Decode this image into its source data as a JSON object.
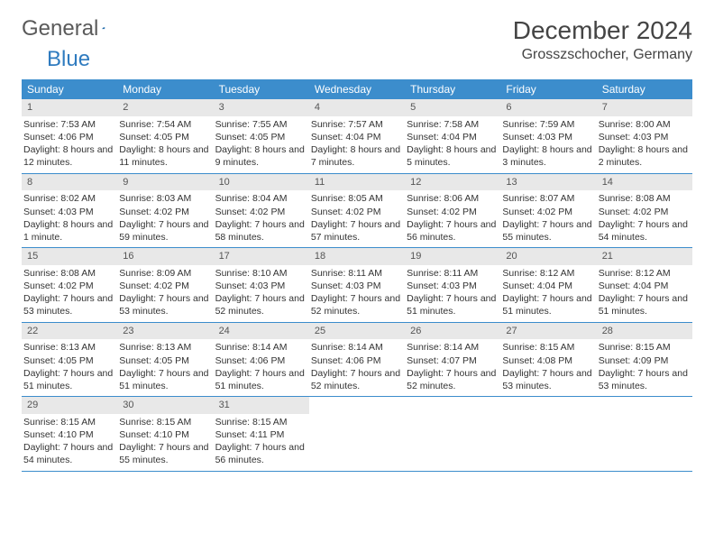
{
  "logo": {
    "text1": "General",
    "text2": "Blue"
  },
  "title": "December 2024",
  "location": "Grosszschocher, Germany",
  "colors": {
    "header_bg": "#3c8dcc",
    "header_text": "#ffffff",
    "daynum_bg": "#e8e8e8",
    "border": "#3c8dcc",
    "logo_gray": "#5a5a5a",
    "logo_blue": "#2f7bbf"
  },
  "weekdays": [
    "Sunday",
    "Monday",
    "Tuesday",
    "Wednesday",
    "Thursday",
    "Friday",
    "Saturday"
  ],
  "weeks": [
    [
      {
        "n": "1",
        "sunrise": "Sunrise: 7:53 AM",
        "sunset": "Sunset: 4:06 PM",
        "daylight": "Daylight: 8 hours and 12 minutes."
      },
      {
        "n": "2",
        "sunrise": "Sunrise: 7:54 AM",
        "sunset": "Sunset: 4:05 PM",
        "daylight": "Daylight: 8 hours and 11 minutes."
      },
      {
        "n": "3",
        "sunrise": "Sunrise: 7:55 AM",
        "sunset": "Sunset: 4:05 PM",
        "daylight": "Daylight: 8 hours and 9 minutes."
      },
      {
        "n": "4",
        "sunrise": "Sunrise: 7:57 AM",
        "sunset": "Sunset: 4:04 PM",
        "daylight": "Daylight: 8 hours and 7 minutes."
      },
      {
        "n": "5",
        "sunrise": "Sunrise: 7:58 AM",
        "sunset": "Sunset: 4:04 PM",
        "daylight": "Daylight: 8 hours and 5 minutes."
      },
      {
        "n": "6",
        "sunrise": "Sunrise: 7:59 AM",
        "sunset": "Sunset: 4:03 PM",
        "daylight": "Daylight: 8 hours and 3 minutes."
      },
      {
        "n": "7",
        "sunrise": "Sunrise: 8:00 AM",
        "sunset": "Sunset: 4:03 PM",
        "daylight": "Daylight: 8 hours and 2 minutes."
      }
    ],
    [
      {
        "n": "8",
        "sunrise": "Sunrise: 8:02 AM",
        "sunset": "Sunset: 4:03 PM",
        "daylight": "Daylight: 8 hours and 1 minute."
      },
      {
        "n": "9",
        "sunrise": "Sunrise: 8:03 AM",
        "sunset": "Sunset: 4:02 PM",
        "daylight": "Daylight: 7 hours and 59 minutes."
      },
      {
        "n": "10",
        "sunrise": "Sunrise: 8:04 AM",
        "sunset": "Sunset: 4:02 PM",
        "daylight": "Daylight: 7 hours and 58 minutes."
      },
      {
        "n": "11",
        "sunrise": "Sunrise: 8:05 AM",
        "sunset": "Sunset: 4:02 PM",
        "daylight": "Daylight: 7 hours and 57 minutes."
      },
      {
        "n": "12",
        "sunrise": "Sunrise: 8:06 AM",
        "sunset": "Sunset: 4:02 PM",
        "daylight": "Daylight: 7 hours and 56 minutes."
      },
      {
        "n": "13",
        "sunrise": "Sunrise: 8:07 AM",
        "sunset": "Sunset: 4:02 PM",
        "daylight": "Daylight: 7 hours and 55 minutes."
      },
      {
        "n": "14",
        "sunrise": "Sunrise: 8:08 AM",
        "sunset": "Sunset: 4:02 PM",
        "daylight": "Daylight: 7 hours and 54 minutes."
      }
    ],
    [
      {
        "n": "15",
        "sunrise": "Sunrise: 8:08 AM",
        "sunset": "Sunset: 4:02 PM",
        "daylight": "Daylight: 7 hours and 53 minutes."
      },
      {
        "n": "16",
        "sunrise": "Sunrise: 8:09 AM",
        "sunset": "Sunset: 4:02 PM",
        "daylight": "Daylight: 7 hours and 53 minutes."
      },
      {
        "n": "17",
        "sunrise": "Sunrise: 8:10 AM",
        "sunset": "Sunset: 4:03 PM",
        "daylight": "Daylight: 7 hours and 52 minutes."
      },
      {
        "n": "18",
        "sunrise": "Sunrise: 8:11 AM",
        "sunset": "Sunset: 4:03 PM",
        "daylight": "Daylight: 7 hours and 52 minutes."
      },
      {
        "n": "19",
        "sunrise": "Sunrise: 8:11 AM",
        "sunset": "Sunset: 4:03 PM",
        "daylight": "Daylight: 7 hours and 51 minutes."
      },
      {
        "n": "20",
        "sunrise": "Sunrise: 8:12 AM",
        "sunset": "Sunset: 4:04 PM",
        "daylight": "Daylight: 7 hours and 51 minutes."
      },
      {
        "n": "21",
        "sunrise": "Sunrise: 8:12 AM",
        "sunset": "Sunset: 4:04 PM",
        "daylight": "Daylight: 7 hours and 51 minutes."
      }
    ],
    [
      {
        "n": "22",
        "sunrise": "Sunrise: 8:13 AM",
        "sunset": "Sunset: 4:05 PM",
        "daylight": "Daylight: 7 hours and 51 minutes."
      },
      {
        "n": "23",
        "sunrise": "Sunrise: 8:13 AM",
        "sunset": "Sunset: 4:05 PM",
        "daylight": "Daylight: 7 hours and 51 minutes."
      },
      {
        "n": "24",
        "sunrise": "Sunrise: 8:14 AM",
        "sunset": "Sunset: 4:06 PM",
        "daylight": "Daylight: 7 hours and 51 minutes."
      },
      {
        "n": "25",
        "sunrise": "Sunrise: 8:14 AM",
        "sunset": "Sunset: 4:06 PM",
        "daylight": "Daylight: 7 hours and 52 minutes."
      },
      {
        "n": "26",
        "sunrise": "Sunrise: 8:14 AM",
        "sunset": "Sunset: 4:07 PM",
        "daylight": "Daylight: 7 hours and 52 minutes."
      },
      {
        "n": "27",
        "sunrise": "Sunrise: 8:15 AM",
        "sunset": "Sunset: 4:08 PM",
        "daylight": "Daylight: 7 hours and 53 minutes."
      },
      {
        "n": "28",
        "sunrise": "Sunrise: 8:15 AM",
        "sunset": "Sunset: 4:09 PM",
        "daylight": "Daylight: 7 hours and 53 minutes."
      }
    ],
    [
      {
        "n": "29",
        "sunrise": "Sunrise: 8:15 AM",
        "sunset": "Sunset: 4:10 PM",
        "daylight": "Daylight: 7 hours and 54 minutes."
      },
      {
        "n": "30",
        "sunrise": "Sunrise: 8:15 AM",
        "sunset": "Sunset: 4:10 PM",
        "daylight": "Daylight: 7 hours and 55 minutes."
      },
      {
        "n": "31",
        "sunrise": "Sunrise: 8:15 AM",
        "sunset": "Sunset: 4:11 PM",
        "daylight": "Daylight: 7 hours and 56 minutes."
      },
      null,
      null,
      null,
      null
    ]
  ]
}
